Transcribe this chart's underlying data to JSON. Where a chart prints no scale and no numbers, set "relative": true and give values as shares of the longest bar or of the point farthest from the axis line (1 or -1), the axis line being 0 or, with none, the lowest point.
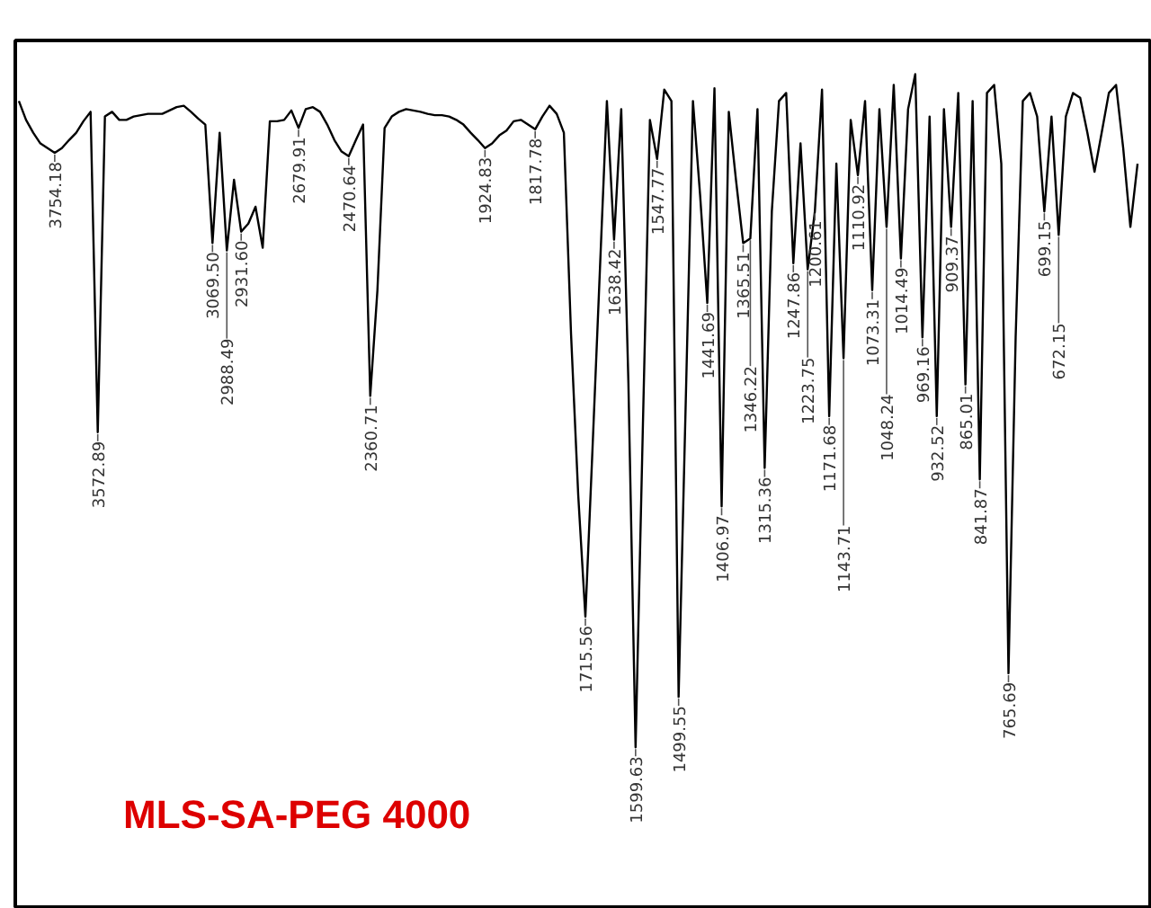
{
  "chart_data": {
    "type": "line",
    "relative": true,
    "tick_labels": false,
    "marker": "none",
    "line_style": "solid",
    "categories": [
      null,
      null,
      null,
      null,
      null,
      null,
      null,
      null,
      null,
      null,
      null,
      null,
      null,
      null,
      null,
      null,
      null,
      null,
      null,
      null,
      null,
      null,
      null,
      null,
      null,
      null,
      null,
      null,
      null,
      null,
      null,
      null,
      null,
      null,
      null,
      null,
      null,
      null,
      null,
      null,
      null,
      null,
      null,
      null,
      null,
      null,
      null,
      null,
      null,
      null,
      null,
      null,
      null,
      null,
      null,
      null,
      null,
      null,
      null,
      null,
      null,
      null,
      null,
      null,
      null,
      null,
      null,
      null,
      null,
      null,
      null,
      null,
      null,
      null,
      null,
      null,
      null,
      null,
      null,
      null,
      null,
      null,
      null,
      null,
      null,
      null,
      null,
      null,
      null,
      null,
      null,
      null,
      null,
      null,
      null,
      null,
      null,
      null,
      null,
      null,
      null,
      null,
      null,
      null,
      null,
      null,
      null,
      null,
      null,
      null,
      null,
      null,
      null,
      null,
      null,
      null,
      null,
      null,
      null,
      null,
      null,
      null,
      null,
      null,
      null,
      null,
      null,
      null,
      null,
      null,
      null,
      null,
      null,
      null,
      null,
      null,
      null,
      null,
      null,
      null,
      null,
      null,
      null,
      null,
      null,
      null,
      null,
      null,
      null,
      null,
      null,
      null,
      null,
      null,
      null,
      null,
      null
    ],
    "series": [
      {
        "color": "#000000",
        "values": [
          0.96,
          0.932,
          0.913,
          0.897,
          0.89,
          0.883,
          0.89,
          0.902,
          0.913,
          0.93,
          0.944,
          0.468,
          0.937,
          0.944,
          0.932,
          0.932,
          0.937,
          0.939,
          0.941,
          0.941,
          0.941,
          0.946,
          0.951,
          0.953,
          0.944,
          0.934,
          0.925,
          0.749,
          0.913,
          0.738,
          0.843,
          0.766,
          0.778,
          0.803,
          0.742,
          0.93,
          0.93,
          0.932,
          0.946,
          0.92,
          0.948,
          0.951,
          0.944,
          0.925,
          0.902,
          0.885,
          0.878,
          0.902,
          0.925,
          0.522,
          0.679,
          0.92,
          0.937,
          0.944,
          0.948,
          0.946,
          0.944,
          0.941,
          0.939,
          0.939,
          0.937,
          0.932,
          0.925,
          0.913,
          0.902,
          0.89,
          0.897,
          0.909,
          0.916,
          0.93,
          0.932,
          0.925,
          0.918,
          0.937,
          0.953,
          0.941,
          0.913,
          0.614,
          0.375,
          0.194,
          0.445,
          0.703,
          0.96,
          0.754,
          0.948,
          0.541,
          0,
          0.468,
          0.932,
          0.874,
          0.977,
          0.96,
          0.075,
          0.515,
          0.96,
          0.82,
          0.66,
          0.979,
          0.358,
          0.944,
          0.843,
          0.749,
          0.756,
          0.948,
          0.415,
          0.796,
          0.96,
          0.972,
          0.719,
          0.897,
          0.71,
          0.796,
          0.977,
          0.492,
          0.867,
          0.578,
          0.932,
          0.85,
          0.96,
          0.679,
          0.948,
          0.773,
          0.984,
          0.726,
          0.948,
          1.0,
          0.609,
          0.937,
          0.492,
          0.948,
          0.773,
          0.972,
          0.539,
          0.96,
          0.398,
          0.972,
          0.984,
          0.867,
          0.11,
          0.609,
          0.96,
          0.972,
          0.937,
          0.796,
          0.937,
          0.761,
          0.937,
          0.972,
          0.965,
          0.913,
          0.855,
          0.913,
          0.972,
          0.984,
          0.89,
          0.773,
          0.867
        ]
      }
    ],
    "annotations": [
      {
        "text": "3754.18",
        "y": 0.883
      },
      {
        "text": "3572.89",
        "y": 0.468
      },
      {
        "text": "3069.50",
        "y": 0.749
      },
      {
        "text": "2988.49",
        "y": 0.738
      },
      {
        "text": "2931.60",
        "y": 0.766
      },
      {
        "text": "2679.91",
        "y": 0.92
      },
      {
        "text": "2470.64",
        "y": 0.878
      },
      {
        "text": "2360.71",
        "y": 0.522
      },
      {
        "text": "1924.83",
        "y": 0.89
      },
      {
        "text": "1817.78",
        "y": 0.918
      },
      {
        "text": "1715.56",
        "y": 0.194
      },
      {
        "text": "1638.42",
        "y": 0.754
      },
      {
        "text": "1599.63",
        "y": 0
      },
      {
        "text": "1547.77",
        "y": 0.874
      },
      {
        "text": "1499.55",
        "y": 0.075
      },
      {
        "text": "1441.69",
        "y": 0.66
      },
      {
        "text": "1406.97",
        "y": 0.358
      },
      {
        "text": "1365.51",
        "y": 0.749
      },
      {
        "text": "1346.22",
        "y": 0.756
      },
      {
        "text": "1315.36",
        "y": 0.415
      },
      {
        "text": "1247.86",
        "y": 0.719
      },
      {
        "text": "1223.75",
        "y": 0.71
      },
      {
        "text": "1200.61",
        "y": 0.796
      },
      {
        "text": "1171.68",
        "y": 0.492
      },
      {
        "text": "1143.71",
        "y": 0.578
      },
      {
        "text": "1110.92",
        "y": 0.85
      },
      {
        "text": "1073.31",
        "y": 0.679
      },
      {
        "text": "1048.24",
        "y": 0.773
      },
      {
        "text": "1014.49",
        "y": 0.726
      },
      {
        "text": "969.16",
        "y": 0.609
      },
      {
        "text": "932.52",
        "y": 0.492
      },
      {
        "text": "909.37",
        "y": 0.773
      },
      {
        "text": "865.01",
        "y": 0.539
      },
      {
        "text": "841.87",
        "y": 0.398
      },
      {
        "text": "765.69",
        "y": 0.11
      },
      {
        "text": "699.15",
        "y": 0.796
      },
      {
        "text": "672.15",
        "y": 0.761
      },
      "MLS-SA-PEG 4000"
    ]
  }
}
